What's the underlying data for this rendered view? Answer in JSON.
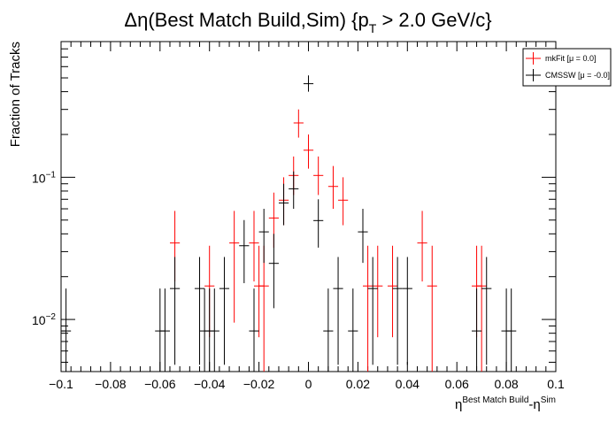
{
  "chart_data": {
    "type": "scatter",
    "title": {
      "main": "Δη(Best Match Build,Sim) {p",
      "sub": "T",
      "tail": " > 2.0 GeV/c}"
    },
    "xlabel": {
      "base1": "η",
      "sup1": "Best Match Build",
      "mid": "-η",
      "sup2": "Sim"
    },
    "ylabel": "Fraction of Tracks",
    "xlim": [
      -0.1,
      0.1
    ],
    "ylim": [
      0.0043,
      0.9
    ],
    "yscale": "log",
    "grid": false,
    "legend_placement": "top-right",
    "x_ticks": [
      {
        "value": -0.1,
        "label": "−0.1"
      },
      {
        "value": -0.08,
        "label": "−0.08"
      },
      {
        "value": -0.06,
        "label": "−0.06"
      },
      {
        "value": -0.04,
        "label": "−0.04"
      },
      {
        "value": -0.02,
        "label": "−0.02"
      },
      {
        "value": 0,
        "label": "0"
      },
      {
        "value": 0.02,
        "label": "0.02"
      },
      {
        "value": 0.04,
        "label": "0.04"
      },
      {
        "value": 0.06,
        "label": "0.06"
      },
      {
        "value": 0.08,
        "label": "0.08"
      },
      {
        "value": 0.1,
        "label": "0.1"
      }
    ],
    "y_ticks": [
      {
        "value": 0.01,
        "base": "10",
        "exp": "−2"
      },
      {
        "value": 0.1,
        "base": "10",
        "exp": "−1"
      }
    ],
    "bin_half_width": 0.002,
    "series": [
      {
        "name": "mkFit",
        "legend_label": "mkFit  [μ =  0.0]",
        "color": "#ff0000",
        "points": [
          {
            "x": -0.054,
            "y": 0.0345,
            "lo": 0.0185,
            "hi": 0.058
          },
          {
            "x": -0.04,
            "y": 0.0172,
            "lo": 0.0075,
            "hi": 0.033
          },
          {
            "x": -0.03,
            "y": 0.0345,
            "lo": 0.0095,
            "hi": 0.058
          },
          {
            "x": -0.022,
            "y": 0.0345,
            "lo": 0.0185,
            "hi": 0.058
          },
          {
            "x": -0.02,
            "y": 0.0172,
            "lo": 0.0075,
            "hi": 0.033
          },
          {
            "x": -0.018,
            "y": 0.0172,
            "lo": 0.0043,
            "hi": 0.033
          },
          {
            "x": -0.014,
            "y": 0.0517,
            "lo": 0.032,
            "hi": 0.078
          },
          {
            "x": -0.01,
            "y": 0.069,
            "lo": 0.046,
            "hi": 0.1
          },
          {
            "x": -0.006,
            "y": 0.103,
            "lo": 0.075,
            "hi": 0.14
          },
          {
            "x": -0.004,
            "y": 0.241,
            "lo": 0.19,
            "hi": 0.3
          },
          {
            "x": 0,
            "y": 0.155,
            "lo": 0.115,
            "hi": 0.2
          },
          {
            "x": 0.004,
            "y": 0.103,
            "lo": 0.075,
            "hi": 0.14
          },
          {
            "x": 0.01,
            "y": 0.0862,
            "lo": 0.06,
            "hi": 0.12
          },
          {
            "x": 0.014,
            "y": 0.069,
            "lo": 0.046,
            "hi": 0.1
          },
          {
            "x": 0.024,
            "y": 0.0172,
            "lo": 0.0043,
            "hi": 0.033
          },
          {
            "x": 0.028,
            "y": 0.0172,
            "lo": 0.0075,
            "hi": 0.033
          },
          {
            "x": 0.034,
            "y": 0.0172,
            "lo": 0.0075,
            "hi": 0.033
          },
          {
            "x": 0.046,
            "y": 0.0345,
            "lo": 0.0185,
            "hi": 0.058
          },
          {
            "x": 0.05,
            "y": 0.0172,
            "lo": 0.0043,
            "hi": 0.033
          },
          {
            "x": 0.068,
            "y": 0.0172,
            "lo": 0.0075,
            "hi": 0.033
          },
          {
            "x": 0.07,
            "y": 0.0172,
            "lo": 0.0043,
            "hi": 0.033
          }
        ]
      },
      {
        "name": "CMSSW",
        "legend_label": "CMSSW  [μ = -0.0]",
        "color": "#000000",
        "points": [
          {
            "x": -0.1,
            "y": 0.0083,
            "lo": 0.0043,
            "hi": 0.0165
          },
          {
            "x": -0.098,
            "y": 0.0083,
            "lo": 0.0043,
            "hi": 0.0165
          },
          {
            "x": -0.06,
            "y": 0.0083,
            "lo": 0.0043,
            "hi": 0.0165
          },
          {
            "x": -0.058,
            "y": 0.0083,
            "lo": 0.0043,
            "hi": 0.0165
          },
          {
            "x": -0.054,
            "y": 0.0165,
            "lo": 0.0048,
            "hi": 0.0275
          },
          {
            "x": -0.044,
            "y": 0.0165,
            "lo": 0.0048,
            "hi": 0.0275
          },
          {
            "x": -0.042,
            "y": 0.0083,
            "lo": 0.0043,
            "hi": 0.0165
          },
          {
            "x": -0.04,
            "y": 0.0083,
            "lo": 0.0043,
            "hi": 0.0165
          },
          {
            "x": -0.038,
            "y": 0.0083,
            "lo": 0.0043,
            "hi": 0.0165
          },
          {
            "x": -0.034,
            "y": 0.0165,
            "lo": 0.0048,
            "hi": 0.0275
          },
          {
            "x": -0.026,
            "y": 0.033,
            "lo": 0.018,
            "hi": 0.05
          },
          {
            "x": -0.022,
            "y": 0.0083,
            "lo": 0.0043,
            "hi": 0.0165
          },
          {
            "x": -0.018,
            "y": 0.0413,
            "lo": 0.025,
            "hi": 0.06
          },
          {
            "x": -0.014,
            "y": 0.0248,
            "lo": 0.012,
            "hi": 0.04
          },
          {
            "x": -0.01,
            "y": 0.066,
            "lo": 0.046,
            "hi": 0.09
          },
          {
            "x": -0.006,
            "y": 0.083,
            "lo": 0.06,
            "hi": 0.11
          },
          {
            "x": 0,
            "y": 0.455,
            "lo": 0.4,
            "hi": 0.52
          },
          {
            "x": 0.004,
            "y": 0.0496,
            "lo": 0.032,
            "hi": 0.07
          },
          {
            "x": 0.008,
            "y": 0.0083,
            "lo": 0.0043,
            "hi": 0.0165
          },
          {
            "x": 0.012,
            "y": 0.0165,
            "lo": 0.0048,
            "hi": 0.0275
          },
          {
            "x": 0.018,
            "y": 0.0083,
            "lo": 0.0043,
            "hi": 0.0165
          },
          {
            "x": 0.022,
            "y": 0.0413,
            "lo": 0.025,
            "hi": 0.06
          },
          {
            "x": 0.026,
            "y": 0.0165,
            "lo": 0.0048,
            "hi": 0.0275
          },
          {
            "x": 0.036,
            "y": 0.0165,
            "lo": 0.0048,
            "hi": 0.0275
          },
          {
            "x": 0.04,
            "y": 0.0165,
            "lo": 0.0048,
            "hi": 0.0275
          },
          {
            "x": 0.068,
            "y": 0.0083,
            "lo": 0.0043,
            "hi": 0.0165
          },
          {
            "x": 0.072,
            "y": 0.0165,
            "lo": 0.0048,
            "hi": 0.0275
          },
          {
            "x": 0.08,
            "y": 0.0083,
            "lo": 0.0043,
            "hi": 0.0165
          },
          {
            "x": 0.082,
            "y": 0.0083,
            "lo": 0.0043,
            "hi": 0.0165
          }
        ]
      }
    ]
  }
}
